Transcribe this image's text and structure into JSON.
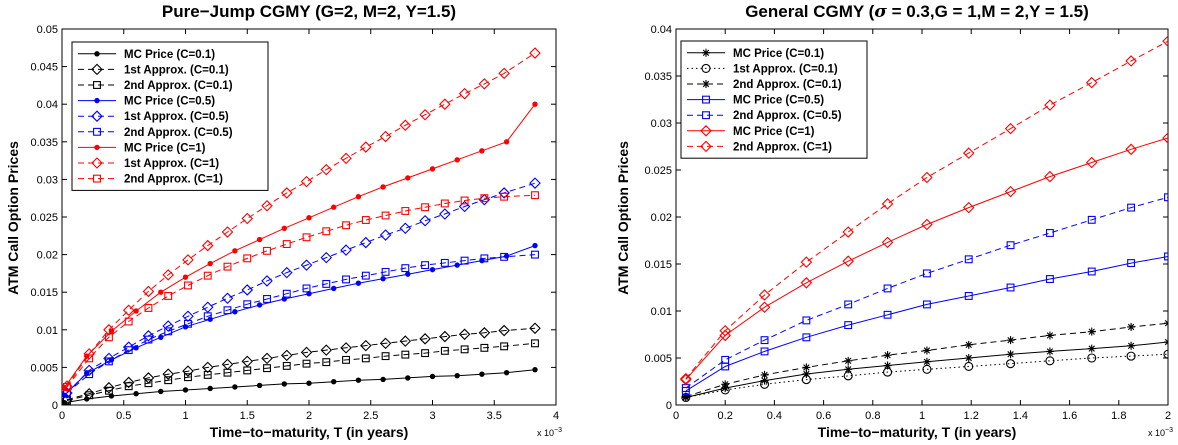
{
  "chart_data": [
    {
      "type": "line",
      "title": "Pure−Jump CGMY (G=2, M=2, Y=1.5)",
      "xlabel": "Time−to−maturity, T (in years)",
      "ylabel": "ATM Call Option Prices",
      "x_exponent": "x 10",
      "x_exponent_power": "−3",
      "xlim": [
        0,
        0.004
      ],
      "ylim": [
        0,
        0.05
      ],
      "xtick_labels": [
        "0",
        "0.5",
        "1",
        "1.5",
        "2",
        "2.5",
        "3",
        "3.5",
        "4"
      ],
      "ytick_labels": [
        "0",
        "0.005",
        "0.01",
        "0.015",
        "0.02",
        "0.025",
        "0.03",
        "0.035",
        "0.04",
        "0.045",
        "0.05"
      ],
      "legend_position": "top-left",
      "grid": false,
      "series": [
        {
          "name": "MC Price (C=0.1)",
          "color": "#000000",
          "dash": "solid",
          "marker": "dot",
          "x": [
            2e-05,
            0.0002,
            0.0004,
            0.0006,
            0.0008,
            0.001,
            0.0012,
            0.0014,
            0.0016,
            0.0018,
            0.002,
            0.0022,
            0.0024,
            0.0026,
            0.0028,
            0.003,
            0.0032,
            0.0034,
            0.0036,
            0.00383
          ],
          "y": [
            0.0003,
            0.0008,
            0.0012,
            0.0015,
            0.0018,
            0.002,
            0.0022,
            0.0024,
            0.0026,
            0.0028,
            0.0029,
            0.0031,
            0.0033,
            0.0034,
            0.0036,
            0.0038,
            0.0039,
            0.0041,
            0.0043,
            0.0047
          ]
        },
        {
          "name": "1st Approx. (C=0.1)",
          "color": "#000000",
          "dash": "dashed",
          "marker": "diamond",
          "x": [
            4e-05,
            0.00022,
            0.00038,
            0.00054,
            0.0007,
            0.00086,
            0.00102,
            0.00118,
            0.00134,
            0.0015,
            0.00166,
            0.00182,
            0.00198,
            0.00214,
            0.0023,
            0.00246,
            0.00262,
            0.00278,
            0.00294,
            0.0031,
            0.00326,
            0.00342,
            0.00358,
            0.00383
          ],
          "y": [
            0.0007,
            0.0015,
            0.0023,
            0.003,
            0.0036,
            0.0041,
            0.0045,
            0.005,
            0.0054,
            0.0058,
            0.0062,
            0.0066,
            0.007,
            0.0073,
            0.0076,
            0.0079,
            0.0082,
            0.0085,
            0.0088,
            0.0091,
            0.0094,
            0.0096,
            0.0099,
            0.0102
          ]
        },
        {
          "name": "2nd Approx. (C=0.1)",
          "color": "#000000",
          "dash": "dashed",
          "marker": "square",
          "x": [
            4e-05,
            0.00022,
            0.00038,
            0.00054,
            0.0007,
            0.00086,
            0.00102,
            0.00118,
            0.00134,
            0.0015,
            0.00166,
            0.00182,
            0.00198,
            0.00214,
            0.0023,
            0.00246,
            0.00262,
            0.00278,
            0.00294,
            0.0031,
            0.00326,
            0.00342,
            0.00358,
            0.00383
          ],
          "y": [
            0.0006,
            0.0013,
            0.0019,
            0.0025,
            0.0029,
            0.0033,
            0.0037,
            0.004,
            0.0043,
            0.0046,
            0.0049,
            0.0052,
            0.0055,
            0.0057,
            0.006,
            0.0062,
            0.0065,
            0.0067,
            0.0069,
            0.0072,
            0.0074,
            0.0076,
            0.0078,
            0.0082
          ]
        },
        {
          "name": "MC Price (C=0.5)",
          "color": "#0000ff",
          "dash": "solid",
          "marker": "dot",
          "x": [
            2e-05,
            0.0002,
            0.0004,
            0.0006,
            0.0008,
            0.001,
            0.0012,
            0.0014,
            0.0016,
            0.0018,
            0.002,
            0.0022,
            0.0024,
            0.0026,
            0.0028,
            0.003,
            0.0032,
            0.0034,
            0.0036,
            0.00383
          ],
          "y": [
            0.0013,
            0.0042,
            0.006,
            0.0076,
            0.009,
            0.0104,
            0.0114,
            0.0124,
            0.0133,
            0.0141,
            0.0148,
            0.0155,
            0.0162,
            0.0168,
            0.0174,
            0.018,
            0.0186,
            0.0192,
            0.0198,
            0.0212
          ]
        },
        {
          "name": "1st Approx. (C=0.5)",
          "color": "#0000ff",
          "dash": "dashed",
          "marker": "diamond",
          "x": [
            4e-05,
            0.00022,
            0.00038,
            0.00054,
            0.0007,
            0.00086,
            0.00102,
            0.00118,
            0.00134,
            0.0015,
            0.00166,
            0.00182,
            0.00198,
            0.00214,
            0.0023,
            0.00246,
            0.00262,
            0.00278,
            0.00294,
            0.0031,
            0.00326,
            0.00342,
            0.00358,
            0.00383
          ],
          "y": [
            0.0016,
            0.0046,
            0.0062,
            0.0077,
            0.0092,
            0.0105,
            0.0118,
            0.013,
            0.0142,
            0.0153,
            0.0165,
            0.0176,
            0.0186,
            0.0196,
            0.0206,
            0.0216,
            0.0226,
            0.0235,
            0.0245,
            0.0254,
            0.0264,
            0.0273,
            0.0282,
            0.0295
          ]
        },
        {
          "name": "2nd Approx. (C=0.5)",
          "color": "#0000ff",
          "dash": "dashed",
          "marker": "square",
          "x": [
            4e-05,
            0.00022,
            0.00038,
            0.00054,
            0.0007,
            0.00086,
            0.00102,
            0.00118,
            0.00134,
            0.0015,
            0.00166,
            0.00182,
            0.00198,
            0.00214,
            0.0023,
            0.00246,
            0.00262,
            0.00278,
            0.00294,
            0.0031,
            0.00326,
            0.00342,
            0.00358,
            0.00383
          ],
          "y": [
            0.0016,
            0.0041,
            0.0058,
            0.0073,
            0.0087,
            0.0098,
            0.0108,
            0.0118,
            0.0126,
            0.0134,
            0.0141,
            0.0148,
            0.0155,
            0.0161,
            0.0167,
            0.0172,
            0.0177,
            0.0182,
            0.0186,
            0.0189,
            0.0192,
            0.0195,
            0.0197,
            0.02
          ]
        },
        {
          "name": "MC Price (C=1)",
          "color": "#ff0000",
          "dash": "solid",
          "marker": "dot",
          "x": [
            2e-05,
            0.0002,
            0.0004,
            0.0006,
            0.0008,
            0.001,
            0.0012,
            0.0014,
            0.0016,
            0.0018,
            0.002,
            0.0022,
            0.0024,
            0.0026,
            0.0028,
            0.003,
            0.0032,
            0.0034,
            0.0036,
            0.00383
          ],
          "y": [
            0.0023,
            0.0065,
            0.0098,
            0.0125,
            0.015,
            0.017,
            0.0188,
            0.0205,
            0.022,
            0.0235,
            0.0249,
            0.0263,
            0.0277,
            0.029,
            0.0302,
            0.0314,
            0.0326,
            0.0338,
            0.035,
            0.04
          ]
        },
        {
          "name": "1st Approx. (C=1)",
          "color": "#ff0000",
          "dash": "dashed",
          "marker": "diamond",
          "x": [
            4e-05,
            0.00022,
            0.00038,
            0.00054,
            0.0007,
            0.00086,
            0.00102,
            0.00118,
            0.00134,
            0.0015,
            0.00166,
            0.00182,
            0.00198,
            0.00214,
            0.0023,
            0.00246,
            0.00262,
            0.00278,
            0.00294,
            0.0031,
            0.00326,
            0.00342,
            0.00358,
            0.00383
          ],
          "y": [
            0.0025,
            0.0068,
            0.01,
            0.0126,
            0.0151,
            0.0173,
            0.0193,
            0.0212,
            0.023,
            0.0248,
            0.0265,
            0.0282,
            0.0297,
            0.0313,
            0.0328,
            0.0343,
            0.0357,
            0.0372,
            0.0386,
            0.04,
            0.0414,
            0.0427,
            0.0441,
            0.0468
          ]
        },
        {
          "name": "2nd Approx. (C=1)",
          "color": "#ff0000",
          "dash": "dashed",
          "marker": "square",
          "x": [
            4e-05,
            0.00022,
            0.00038,
            0.00054,
            0.0007,
            0.00086,
            0.00102,
            0.00118,
            0.00134,
            0.0015,
            0.00166,
            0.00182,
            0.00198,
            0.00214,
            0.0023,
            0.00246,
            0.00262,
            0.00278,
            0.00294,
            0.0031,
            0.00326,
            0.00342,
            0.00358,
            0.00383
          ],
          "y": [
            0.0024,
            0.0062,
            0.009,
            0.0111,
            0.0129,
            0.0145,
            0.0159,
            0.0172,
            0.0184,
            0.0195,
            0.0205,
            0.0214,
            0.0223,
            0.0231,
            0.0239,
            0.0246,
            0.0252,
            0.0258,
            0.0263,
            0.0268,
            0.0272,
            0.0275,
            0.0277,
            0.0279
          ]
        }
      ]
    },
    {
      "type": "line",
      "title_prefix": "General CGMY (",
      "title_sigma": "σ",
      "title_suffix": " = 0.3,G = 1,M = 2,Y = 1.5)",
      "xlabel": "Time−to−maturity, T (in years)",
      "ylabel": "ATM Call Option Prices",
      "x_exponent": "x 10",
      "x_exponent_power": "−3",
      "xlim": [
        0,
        0.002
      ],
      "ylim": [
        0,
        0.04
      ],
      "xtick_labels": [
        "0",
        "0.2",
        "0.4",
        "0.6",
        "0.8",
        "1",
        "1.2",
        "1.4",
        "1.6",
        "1.8",
        "2"
      ],
      "ytick_labels": [
        "0",
        "0.005",
        "0.01",
        "0.015",
        "0.02",
        "0.025",
        "0.03",
        "0.035",
        "0.04"
      ],
      "legend_position": "top-left",
      "grid": false,
      "series": [
        {
          "name": "MC Price (C=0.1)",
          "color": "#000000",
          "dash": "solid",
          "marker": "star",
          "x": [
            4e-05,
            0.0002,
            0.00036,
            0.00053,
            0.0007,
            0.00086,
            0.00102,
            0.00119,
            0.00136,
            0.00152,
            0.00169,
            0.00185,
            0.002
          ],
          "y": [
            0.0008,
            0.0018,
            0.0026,
            0.0033,
            0.0038,
            0.0042,
            0.0046,
            0.005,
            0.0054,
            0.0057,
            0.006,
            0.0063,
            0.0067
          ]
        },
        {
          "name": "1st Approx. (C=0.1)",
          "color": "#000000",
          "dash": "dotted",
          "marker": "circle",
          "x": [
            4e-05,
            0.0002,
            0.00036,
            0.00053,
            0.0007,
            0.00086,
            0.00102,
            0.00119,
            0.00136,
            0.00152,
            0.00169,
            0.00185,
            0.002
          ],
          "y": [
            0.0008,
            0.0016,
            0.0022,
            0.0027,
            0.0031,
            0.0035,
            0.0038,
            0.0041,
            0.0044,
            0.0047,
            0.005,
            0.0052,
            0.0054
          ]
        },
        {
          "name": "2nd Approx. (C=0.1)",
          "color": "#000000",
          "dash": "dashed",
          "marker": "star",
          "x": [
            4e-05,
            0.0002,
            0.00036,
            0.00053,
            0.0007,
            0.00086,
            0.00102,
            0.00119,
            0.00136,
            0.00152,
            0.00169,
            0.00185,
            0.002
          ],
          "y": [
            0.0009,
            0.0022,
            0.0032,
            0.004,
            0.0047,
            0.0053,
            0.0058,
            0.0064,
            0.0069,
            0.0074,
            0.0078,
            0.0083,
            0.0087
          ]
        },
        {
          "name": "MC Price (C=0.5)",
          "color": "#0000ff",
          "dash": "solid",
          "marker": "square",
          "x": [
            4e-05,
            0.0002,
            0.00036,
            0.00053,
            0.0007,
            0.00086,
            0.00102,
            0.00119,
            0.00136,
            0.00152,
            0.00169,
            0.00185,
            0.002
          ],
          "y": [
            0.0015,
            0.0041,
            0.0057,
            0.0072,
            0.0085,
            0.0096,
            0.0107,
            0.0116,
            0.0125,
            0.0134,
            0.0142,
            0.0151,
            0.0158
          ]
        },
        {
          "name": "2nd Approx. (C=0.5)",
          "color": "#0000ff",
          "dash": "dashed",
          "marker": "square",
          "x": [
            4e-05,
            0.0002,
            0.00036,
            0.00053,
            0.0007,
            0.00086,
            0.00102,
            0.00119,
            0.00136,
            0.00152,
            0.00169,
            0.00185,
            0.002
          ],
          "y": [
            0.0018,
            0.0048,
            0.0069,
            0.009,
            0.0107,
            0.0124,
            0.014,
            0.0155,
            0.017,
            0.0183,
            0.0197,
            0.021,
            0.0221
          ]
        },
        {
          "name": "MC Price (C=1)",
          "color": "#ff0000",
          "dash": "solid",
          "marker": "diamond",
          "x": [
            4e-05,
            0.0002,
            0.00036,
            0.00053,
            0.0007,
            0.00086,
            0.00102,
            0.00119,
            0.00136,
            0.00152,
            0.00169,
            0.00185,
            0.002
          ],
          "y": [
            0.0027,
            0.0074,
            0.0104,
            0.013,
            0.0153,
            0.0173,
            0.0192,
            0.021,
            0.0227,
            0.0243,
            0.0258,
            0.0272,
            0.0284
          ]
        },
        {
          "name": "2nd Approx. (C=1)",
          "color": "#ff0000",
          "dash": "dashed",
          "marker": "diamond",
          "x": [
            4e-05,
            0.0002,
            0.00036,
            0.00053,
            0.0007,
            0.00086,
            0.00102,
            0.00119,
            0.00136,
            0.00152,
            0.00169,
            0.00185,
            0.002
          ],
          "y": [
            0.0028,
            0.0079,
            0.0117,
            0.0152,
            0.0184,
            0.0214,
            0.0242,
            0.0268,
            0.0294,
            0.0319,
            0.0343,
            0.0366,
            0.0387
          ]
        }
      ]
    }
  ]
}
